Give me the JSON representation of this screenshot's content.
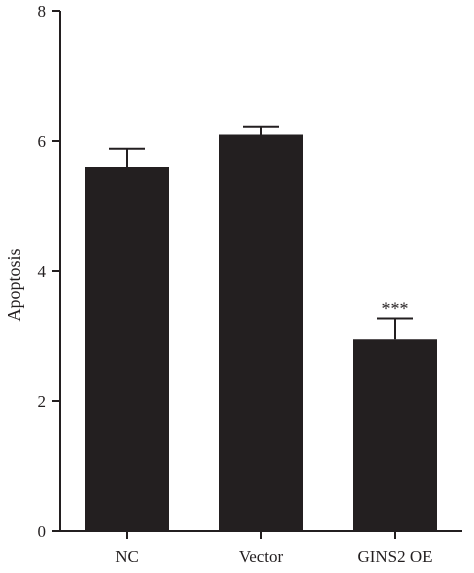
{
  "chart_data": {
    "type": "bar",
    "categories": [
      "NC",
      "Vector",
      "GINS2 OE"
    ],
    "values": [
      5.6,
      6.1,
      2.95
    ],
    "errors": [
      0.28,
      0.12,
      0.32
    ],
    "annotations": [
      "",
      "",
      "***"
    ],
    "ylabel": "Apoptosis",
    "ylim": [
      0,
      8
    ],
    "yticks": [
      0,
      2,
      4,
      6,
      8
    ],
    "grid": false,
    "bar_color": "#231f20",
    "axis_color": "#231f20"
  }
}
